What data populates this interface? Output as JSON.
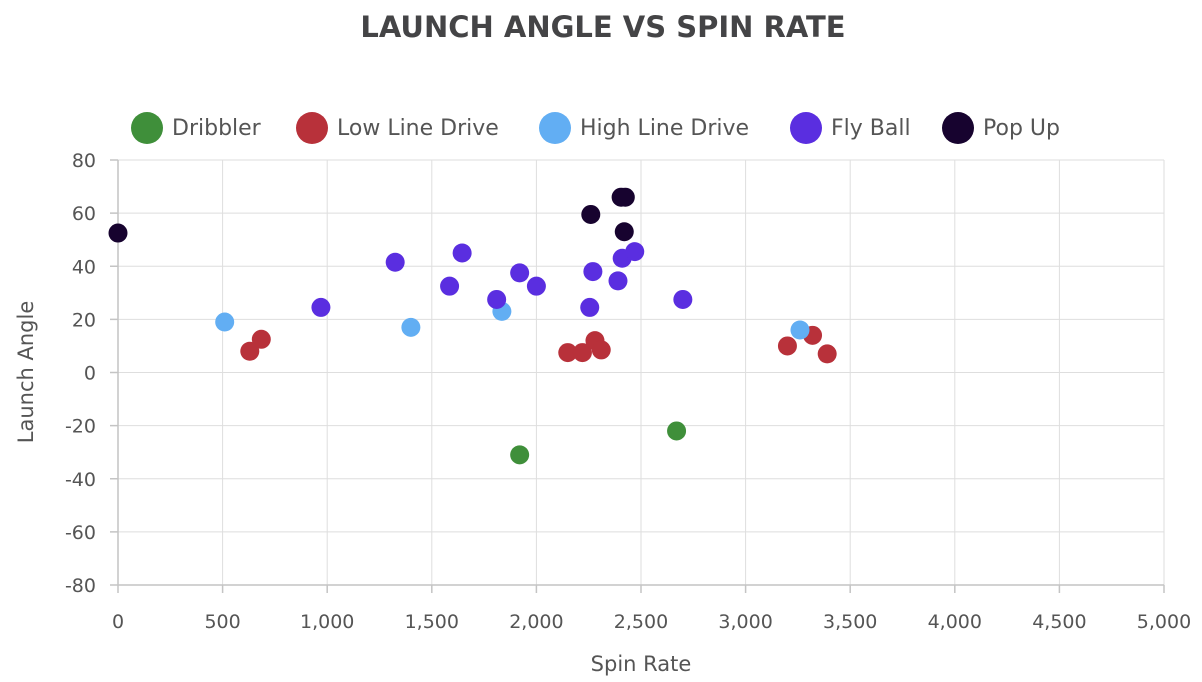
{
  "chart_data": {
    "type": "scatter",
    "title": "LAUNCH ANGLE VS SPIN RATE",
    "xlabel": "Spin Rate",
    "ylabel": "Launch Angle",
    "xlim": [
      0,
      5000
    ],
    "ylim": [
      -80,
      80
    ],
    "x_ticks": [
      "0",
      "500",
      "1,000",
      "1,500",
      "2,000",
      "2,500",
      "3,000",
      "3,500",
      "4,000",
      "4,500",
      "5,000"
    ],
    "x_tick_values": [
      0,
      500,
      1000,
      1500,
      2000,
      2500,
      3000,
      3500,
      4000,
      4500,
      5000
    ],
    "y_ticks": [
      "80",
      "60",
      "40",
      "20",
      "0",
      "-20",
      "-40",
      "-60",
      "-80"
    ],
    "y_tick_values": [
      80,
      60,
      40,
      20,
      0,
      -20,
      -40,
      -60,
      -80
    ],
    "grid": true,
    "legend_position": "top",
    "series": [
      {
        "name": "Dribbler",
        "color": "#3f8f3a",
        "points": [
          [
            1920,
            -31
          ],
          [
            2670,
            -22
          ]
        ]
      },
      {
        "name": "Low Line Drive",
        "color": "#b8313a",
        "points": [
          [
            630,
            8
          ],
          [
            685,
            12.5
          ],
          [
            2150,
            7.5
          ],
          [
            2220,
            7.5
          ],
          [
            2280,
            12
          ],
          [
            2310,
            8.5
          ],
          [
            3200,
            10
          ],
          [
            3320,
            14
          ],
          [
            3390,
            7
          ]
        ]
      },
      {
        "name": "High Line Drive",
        "color": "#62aef3",
        "points": [
          [
            510,
            19
          ],
          [
            1400,
            17
          ],
          [
            1835,
            23
          ],
          [
            3260,
            16
          ]
        ]
      },
      {
        "name": "Fly Ball",
        "color": "#5a2ee0",
        "points": [
          [
            970,
            24.5
          ],
          [
            1325,
            41.5
          ],
          [
            1585,
            32.5
          ],
          [
            1645,
            45
          ],
          [
            1810,
            27.5
          ],
          [
            1920,
            37.5
          ],
          [
            2000,
            32.5
          ],
          [
            2255,
            24.5
          ],
          [
            2270,
            38
          ],
          [
            2390,
            34.5
          ],
          [
            2410,
            43
          ],
          [
            2470,
            45.5
          ],
          [
            2700,
            27.5
          ]
        ]
      },
      {
        "name": "Pop Up",
        "color": "#17032f",
        "points": [
          [
            0,
            52.5
          ],
          [
            2260,
            59.5
          ],
          [
            2405,
            66
          ],
          [
            2425,
            66
          ],
          [
            2420,
            53
          ]
        ]
      }
    ]
  }
}
